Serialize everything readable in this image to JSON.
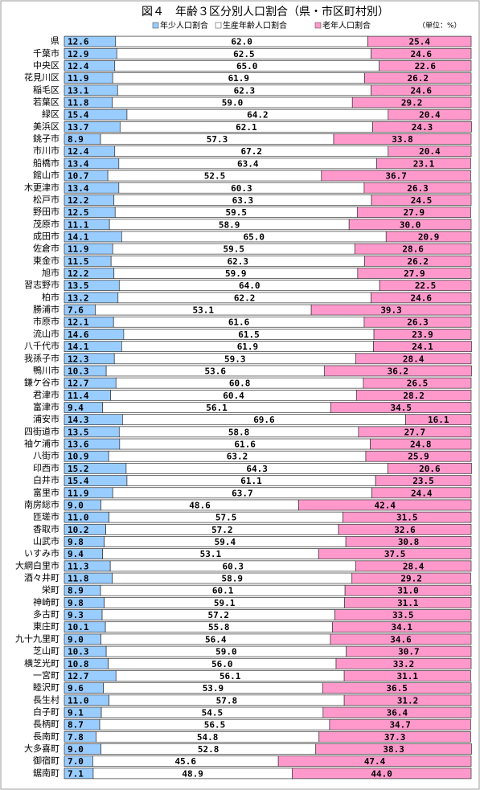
{
  "chart_data": {
    "type": "stacked-bar-horizontal",
    "title": "図４　年齢３区分別人口割合（県・市区町村別）",
    "unit_note": "（単位：%）",
    "xlim": [
      0,
      100
    ],
    "categories": [
      "県",
      "千葉市",
      "中央区",
      "花見川区",
      "稲毛区",
      "若葉区",
      "緑区",
      "美浜区",
      "銚子市",
      "市川市",
      "船橋市",
      "館山市",
      "木更津市",
      "松戸市",
      "野田市",
      "茂原市",
      "成田市",
      "佐倉市",
      "東金市",
      "旭市",
      "習志野市",
      "柏市",
      "勝浦市",
      "市原市",
      "流山市",
      "八千代市",
      "我孫子市",
      "鴨川市",
      "鎌ケ谷市",
      "君津市",
      "富津市",
      "浦安市",
      "四街道市",
      "袖ケ浦市",
      "八街市",
      "印西市",
      "白井市",
      "富里市",
      "南房総市",
      "匝瑳市",
      "香取市",
      "山武市",
      "いすみ市",
      "大網白里市",
      "酒々井町",
      "栄町",
      "神崎町",
      "多古町",
      "東庄町",
      "九十九里町",
      "芝山町",
      "横芝光町",
      "一宮町",
      "睦沢町",
      "長生村",
      "白子町",
      "長柄町",
      "長南町",
      "大多喜町",
      "御宿町",
      "鋸南町"
    ],
    "series": [
      {
        "name": "年少人口割合",
        "color": "#99ccff",
        "values": [
          12.6,
          12.9,
          12.4,
          11.9,
          13.1,
          11.8,
          15.4,
          13.7,
          8.9,
          12.4,
          13.4,
          10.7,
          13.4,
          12.2,
          12.5,
          11.1,
          14.1,
          11.9,
          11.5,
          12.2,
          13.5,
          13.2,
          7.6,
          12.1,
          14.6,
          14.1,
          12.3,
          10.3,
          12.7,
          11.4,
          9.4,
          14.3,
          13.5,
          13.6,
          10.9,
          15.2,
          15.4,
          11.9,
          9.0,
          11.0,
          10.2,
          9.8,
          9.4,
          11.3,
          11.8,
          8.9,
          9.8,
          9.3,
          10.1,
          9.0,
          10.3,
          10.8,
          12.7,
          9.6,
          11.0,
          9.1,
          8.7,
          7.8,
          9.0,
          7.0,
          7.1
        ],
        "value_labels": [
          "12.6",
          "12.9",
          "12.4",
          "11.9",
          "13.1",
          "11.8",
          "15.4",
          "13.7",
          "8.9",
          "12.4",
          "13.4",
          "10.7",
          "13.4",
          "12.2",
          "12.5",
          "11.1",
          "14.1",
          "11.9",
          "11.5",
          "12.2",
          "13.5",
          "13.2",
          "7.6",
          "12.1",
          "14.6",
          "14.1",
          "12.3",
          "10.3",
          "12.7",
          "11.4",
          "9.4",
          "14.3",
          "13.5",
          "13.6",
          "10.9",
          "15.2",
          "15.4",
          "11.9",
          "9.0",
          "11.0",
          "10.2",
          "9.8",
          "9.4",
          "11.3",
          "11.8",
          "8.9",
          "9.8",
          "9.3",
          "10.1",
          "9.0",
          "10.3",
          "10.8",
          "12.7",
          "9.6",
          "11.0",
          "9.1",
          "8.7",
          "7.8",
          "9.0",
          "7.0",
          "7.1"
        ]
      },
      {
        "name": "生産年齢人口割合",
        "color": "#ffffff",
        "values": [
          62.0,
          62.5,
          65.0,
          61.9,
          62.3,
          59.0,
          64.2,
          62.1,
          57.3,
          67.2,
          63.4,
          52.5,
          60.3,
          63.3,
          59.5,
          58.9,
          65.0,
          59.5,
          62.3,
          59.9,
          64.0,
          62.2,
          53.1,
          61.6,
          61.5,
          61.9,
          59.3,
          53.6,
          60.8,
          60.4,
          56.1,
          69.6,
          58.8,
          61.6,
          63.2,
          64.3,
          61.1,
          63.7,
          48.6,
          57.5,
          57.2,
          59.4,
          53.1,
          60.3,
          58.9,
          60.1,
          59.1,
          57.2,
          55.8,
          56.4,
          59.0,
          56.0,
          56.1,
          53.9,
          57.8,
          54.5,
          56.5,
          54.8,
          52.8,
          45.6,
          48.9
        ],
        "value_labels": [
          "62.0",
          "62.5",
          "65.0",
          "61.9",
          "62.3",
          "59.0",
          "64.2",
          "62.1",
          "57.3",
          "67.2",
          "63.4",
          "52.5",
          "60.3",
          "63.3",
          "59.5",
          "58.9",
          "65.0",
          "59.5",
          "62.3",
          "59.9",
          "64.0",
          "62.2",
          "53.1",
          "61.6",
          "61.5",
          "61.9",
          "59.3",
          "53.6",
          "60.8",
          "60.4",
          "56.1",
          "69.6",
          "58.8",
          "61.6",
          "63.2",
          "64.3",
          "61.1",
          "63.7",
          "48.6",
          "57.5",
          "57.2",
          "59.4",
          "53.1",
          "60.3",
          "58.9",
          "60.1",
          "59.1",
          "57.2",
          "55.8",
          "56.4",
          "59.0",
          "56.0",
          "56.1",
          "53.9",
          "57.8",
          "54.5",
          "56.5",
          "54.8",
          "52.8",
          "45.6",
          "48.9"
        ]
      },
      {
        "name": "老年人口割合",
        "color": "#ff99cc",
        "values": [
          25.4,
          24.6,
          22.6,
          26.2,
          24.6,
          29.2,
          20.4,
          24.3,
          33.8,
          20.4,
          23.1,
          36.7,
          26.3,
          24.5,
          27.9,
          30.0,
          20.9,
          28.6,
          26.2,
          27.9,
          22.5,
          24.6,
          39.3,
          26.3,
          23.9,
          24.1,
          28.4,
          36.2,
          26.5,
          28.2,
          34.5,
          16.1,
          27.7,
          24.8,
          25.9,
          20.6,
          23.5,
          24.4,
          42.4,
          31.5,
          32.6,
          30.8,
          37.5,
          28.4,
          29.2,
          31.0,
          31.1,
          33.5,
          34.1,
          34.6,
          30.7,
          33.2,
          31.1,
          36.5,
          31.2,
          36.4,
          34.7,
          37.3,
          38.3,
          47.4,
          44.0
        ],
        "value_labels": [
          "25.4",
          "24.6",
          "22.6",
          "26.2",
          "24.6",
          "29.2",
          "20.4",
          "24.3",
          "33.8",
          "20.4",
          "23.1",
          "36.7",
          "26.3",
          "24.5",
          "27.9",
          "30.0",
          "20.9",
          "28.6",
          "26.2",
          "27.9",
          "22.5",
          "24.6",
          "39.3",
          "26.3",
          "23.9",
          "24.1",
          "28.4",
          "36.2",
          "26.5",
          "28.2",
          "34.5",
          "16.1",
          "27.7",
          "24.8",
          "25.9",
          "20.6",
          "23.5",
          "24.4",
          "42.4",
          "31.5",
          "32.6",
          "30.8",
          "37.5",
          "28.4",
          "29.2",
          "31.0",
          "31.1",
          "33.5",
          "34.1",
          "34.6",
          "30.7",
          "33.2",
          "31.1",
          "36.5",
          "31.2",
          "36.4",
          "34.7",
          "37.3",
          "38.3",
          "47.4",
          "44.0"
        ]
      }
    ]
  }
}
